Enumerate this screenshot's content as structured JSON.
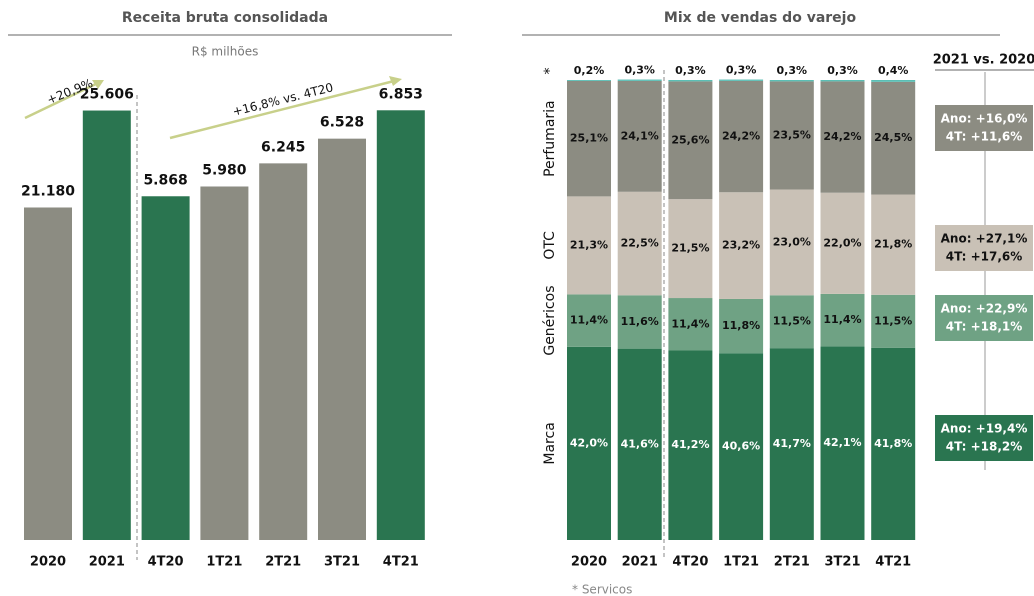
{
  "chart_data": [
    {
      "type": "bar",
      "title": "Receita bruta consolidada",
      "subtitle": "R$ milhões",
      "categories": [
        "2020",
        "2021",
        "4T20",
        "1T21",
        "2T21",
        "3T21",
        "4T21"
      ],
      "bar_colors": [
        "#8c8c82",
        "#2a7550",
        "#2a7550",
        "#8c8c82",
        "#8c8c82",
        "#8c8c82",
        "#2a7550"
      ],
      "series": [
        {
          "name": null,
          "values": [
            21180,
            25606,
            null,
            null,
            null,
            null,
            null
          ],
          "value_labels": [
            "21.180",
            "25.606",
            null,
            null,
            null,
            null,
            null
          ]
        },
        {
          "name": null,
          "axis": "y2",
          "values": [
            null,
            null,
            5868,
            5980,
            6245,
            6528,
            6853
          ],
          "value_labels": [
            null,
            null,
            "5.868",
            "5.980",
            "6.245",
            "6.528",
            "6.853"
          ]
        }
      ],
      "ylim": [
        6000,
        27000
      ],
      "y2lim": [
        1930,
        7200
      ],
      "annotations": [
        "+20,9%",
        "+16,8% vs. 4T20"
      ]
    },
    {
      "type": "stacked_bar",
      "title": "Mix de vendas do varejo",
      "categories": [
        "2020",
        "2021",
        "4T20",
        "1T21",
        "2T21",
        "3T21",
        "4T21"
      ],
      "series": [
        {
          "name": "Marca",
          "color": "#2a7550",
          "label_color": "#ffffff",
          "values": [
            42.0,
            41.6,
            41.2,
            40.6,
            41.7,
            42.1,
            41.8
          ],
          "value_labels": [
            "42,0%",
            "41,6%",
            "41,2%",
            "40,6%",
            "41,7%",
            "42,1%",
            "41,8%"
          ]
        },
        {
          "name": "Genéricos",
          "color": "#6fa284",
          "label_color": "#111111",
          "values": [
            11.4,
            11.6,
            11.4,
            11.8,
            11.5,
            11.4,
            11.5
          ],
          "value_labels": [
            "11,4%",
            "11,6%",
            "11,4%",
            "11,8%",
            "11,5%",
            "11,4%",
            "11,5%"
          ]
        },
        {
          "name": "OTC",
          "color": "#c9c1b6",
          "label_color": "#111111",
          "values": [
            21.3,
            22.5,
            21.5,
            23.2,
            23.0,
            22.0,
            21.8
          ],
          "value_labels": [
            "21,3%",
            "22,5%",
            "21,5%",
            "23,2%",
            "23,0%",
            "22,0%",
            "21,8%"
          ]
        },
        {
          "name": "Perfumaria",
          "color": "#8c8c82",
          "label_color": "#111111",
          "values": [
            25.1,
            24.1,
            25.6,
            24.2,
            23.5,
            24.2,
            24.5
          ],
          "value_labels": [
            "25,1%",
            "24,1%",
            "25,6%",
            "24,2%",
            "23,5%",
            "24,2%",
            "24,5%"
          ]
        },
        {
          "name": "*",
          "color": "#5bbfb5",
          "label_color": "#111111",
          "values": [
            0.2,
            0.3,
            0.3,
            0.3,
            0.3,
            0.3,
            0.4
          ],
          "value_labels": [
            "0,2%",
            "0,3%",
            "0,3%",
            "0,3%",
            "0,3%",
            "0,3%",
            "0,4%"
          ]
        }
      ],
      "ylim": [
        0,
        100
      ],
      "footnote": "* Servicos"
    }
  ],
  "side_panel": {
    "title": "2021 vs. 2020",
    "items": [
      {
        "ano": "Ano: +16,0%",
        "t4": "4T: +11,6%",
        "color": "#8c8c82",
        "text_color": "#ffffff"
      },
      {
        "ano": "Ano: +27,1%",
        "t4": "4T: +17,6%",
        "color": "#c9c1b6",
        "text_color": "#111111"
      },
      {
        "ano": "Ano: +22,9%",
        "t4": "4T: +18,1%",
        "color": "#6fa284",
        "text_color": "#ffffff"
      },
      {
        "ano": "Ano: +19,4%",
        "t4": "4T: +18,2%",
        "color": "#2a7550",
        "text_color": "#ffffff"
      }
    ]
  }
}
